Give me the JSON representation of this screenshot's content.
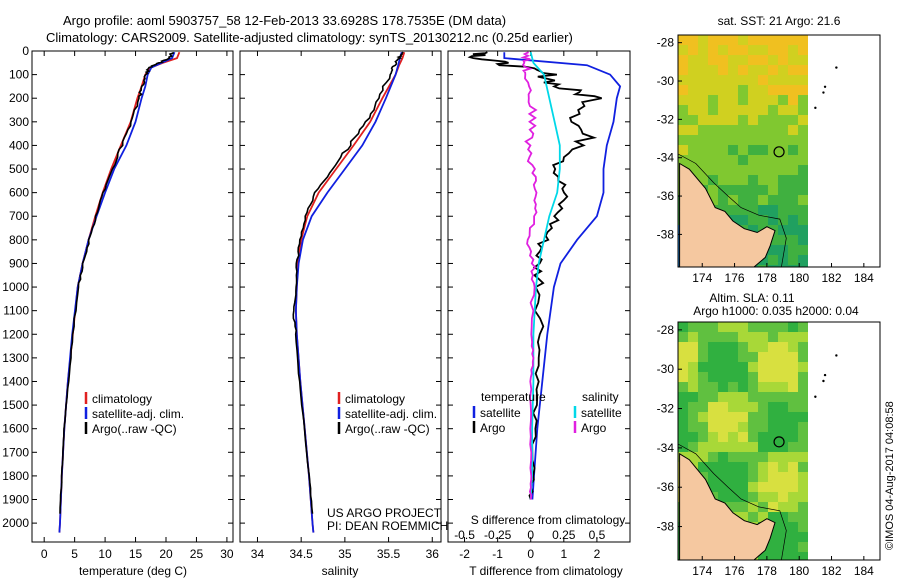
{
  "title": {
    "line1": "Argo profile: aoml 5903757_58 12-Feb-2013 33.6928S 178.7535E (DM data)",
    "line2": "Climatology: CARS2009. Satellite-adjusted climatology: synTS_20130212.nc (0.25d earlier)"
  },
  "colors": {
    "climatology": "#e02020",
    "satellite": "#1020e0",
    "argo": "#000000",
    "sat_salinity": "#00d8e8",
    "argo_salinity": "#e020e0",
    "land": "#f5c8a0"
  },
  "chart_data": [
    {
      "type": "line",
      "name": "temperature-profile",
      "xlabel": "temperature (deg C)",
      "ylabel": "depth",
      "xlim": [
        -2,
        31
      ],
      "ylim": [
        0,
        2080
      ],
      "xticks": [
        0,
        5,
        10,
        15,
        20,
        25,
        30
      ],
      "yticks": [
        0,
        100,
        200,
        300,
        400,
        500,
        600,
        700,
        800,
        900,
        1000,
        1100,
        1200,
        1300,
        1400,
        1500,
        1600,
        1700,
        1800,
        1900,
        2000
      ],
      "legend": [
        "climatology",
        "satellite-adj. clim.",
        "Argo(..raw -QC)"
      ],
      "series": [
        {
          "name": "climatology",
          "color_key": "climatology",
          "depth": [
            5,
            30,
            50,
            70,
            100,
            150,
            200,
            300,
            400,
            500,
            600,
            700,
            800,
            900,
            1000,
            1200,
            1400,
            1600,
            1800,
            2000,
            2040
          ],
          "values": [
            22.2,
            21.8,
            19.5,
            17.5,
            16.6,
            16.0,
            15.3,
            14.2,
            12.6,
            11.0,
            9.6,
            8.4,
            7.3,
            6.3,
            5.5,
            4.7,
            3.9,
            3.3,
            2.9,
            2.6,
            2.5
          ]
        },
        {
          "name": "satellite-adj. clim.",
          "color_key": "satellite",
          "depth": [
            5,
            30,
            50,
            70,
            100,
            150,
            200,
            300,
            400,
            500,
            600,
            700,
            800,
            900,
            1000,
            1200,
            1400,
            1600,
            1800,
            2000,
            2040
          ],
          "values": [
            21.4,
            21.0,
            19.3,
            17.6,
            17.0,
            16.6,
            16.0,
            15.0,
            13.5,
            11.5,
            10.0,
            8.6,
            7.3,
            6.3,
            5.5,
            4.6,
            3.9,
            3.3,
            2.9,
            2.6,
            2.5
          ]
        },
        {
          "name": "Argo",
          "color_key": "argo",
          "depth": [
            5,
            30,
            50,
            70,
            100,
            150,
            200,
            300,
            400,
            500,
            600,
            700,
            800,
            900,
            1000,
            1200,
            1400,
            1600,
            1800,
            1960
          ],
          "values": [
            21.0,
            20.6,
            18.9,
            17.3,
            16.7,
            16.2,
            15.5,
            14.3,
            12.8,
            11.1,
            9.7,
            8.5,
            7.4,
            6.4,
            5.6,
            4.7,
            4.0,
            3.3,
            2.9,
            2.6
          ]
        }
      ]
    },
    {
      "type": "line",
      "name": "salinity-profile",
      "xlabel": "salinity",
      "ylabel": "depth",
      "xlim": [
        33.8,
        36.1
      ],
      "ylim": [
        0,
        2080
      ],
      "xticks": [
        34,
        34.5,
        35,
        35.5,
        36
      ],
      "legend": [
        "climatology",
        "satellite-adj. clim.",
        "Argo(..raw -QC)"
      ],
      "series": [
        {
          "name": "climatology",
          "color_key": "climatology",
          "depth": [
            5,
            30,
            60,
            100,
            200,
            300,
            400,
            500,
            600,
            700,
            800,
            900,
            1000,
            1100,
            1200,
            1400,
            1600,
            1800,
            2000,
            2040
          ],
          "values": [
            35.68,
            35.66,
            35.62,
            35.58,
            35.43,
            35.29,
            35.1,
            34.9,
            34.7,
            34.57,
            34.5,
            34.46,
            34.45,
            34.44,
            34.45,
            34.49,
            34.54,
            34.59,
            34.63,
            34.64
          ]
        },
        {
          "name": "satellite-adj. clim.",
          "color_key": "satellite",
          "depth": [
            5,
            30,
            60,
            100,
            200,
            300,
            400,
            500,
            600,
            700,
            800,
            900,
            1000,
            1100,
            1200,
            1400,
            1600,
            1800,
            2000,
            2040
          ],
          "values": [
            35.65,
            35.63,
            35.61,
            35.58,
            35.47,
            35.35,
            35.2,
            35.0,
            34.8,
            34.62,
            34.52,
            34.47,
            34.45,
            34.44,
            34.45,
            34.49,
            34.54,
            34.59,
            34.63,
            34.64
          ]
        },
        {
          "name": "Argo",
          "color_key": "argo",
          "depth": [
            5,
            30,
            60,
            100,
            200,
            300,
            400,
            500,
            600,
            700,
            800,
            900,
            1000,
            1100,
            1200,
            1400,
            1600,
            1800,
            1960
          ],
          "values": [
            35.65,
            35.62,
            35.56,
            35.52,
            35.38,
            35.25,
            35.05,
            34.86,
            34.66,
            34.55,
            34.49,
            34.45,
            34.44,
            34.41,
            34.44,
            34.48,
            34.54,
            34.59,
            34.63
          ]
        }
      ],
      "annotations": [
        "US ARGO PROJECT",
        "PI: DEAN ROEMMICH"
      ]
    },
    {
      "type": "line",
      "name": "difference-profile",
      "xlabel": "T difference from climatology",
      "x2label": "S difference from climatology",
      "ylim": [
        0,
        2080
      ],
      "xlim": [
        -2.5,
        3.0
      ],
      "xticks": [
        -2,
        -1,
        0,
        1,
        2
      ],
      "x2lim": [
        -0.625,
        0.75
      ],
      "x2ticks": [
        -0.5,
        -0.25,
        0,
        0.25,
        0.5
      ],
      "x2ticklabels": [
        "-0.5",
        "-0.25",
        "0",
        "0.25",
        "0.5"
      ],
      "legend_temperature": [
        "temperature",
        "satellite",
        "Argo"
      ],
      "legend_salinity": [
        "salinity",
        "satellite",
        "Argo"
      ],
      "series": [
        {
          "name": "temperature satellite",
          "color_key": "satellite",
          "axis": "T",
          "depth": [
            5,
            30,
            60,
            100,
            150,
            200,
            300,
            400,
            500,
            600,
            700,
            800,
            900,
            1000,
            1200,
            1400,
            1600,
            1800,
            1900
          ],
          "values": [
            -0.8,
            -0.8,
            1.7,
            2.4,
            2.7,
            2.6,
            2.5,
            2.3,
            2.2,
            2.2,
            2.0,
            1.4,
            0.9,
            0.7,
            0.5,
            0.35,
            0.2,
            0.1,
            0.05
          ]
        },
        {
          "name": "temperature Argo",
          "color_key": "argo",
          "axis": "T",
          "depth": [
            5,
            30,
            60,
            100,
            150,
            200,
            300,
            400,
            500,
            600,
            700,
            800,
            900,
            1000,
            1200,
            1400,
            1600,
            1800,
            1900
          ],
          "values": [
            -1.3,
            -1.6,
            -0.6,
            0.5,
            0.8,
            2.0,
            1.4,
            1.7,
            0.8,
            1.0,
            0.8,
            0.4,
            0.2,
            0.3,
            0.3,
            0.2,
            0.1,
            0.05,
            0.0
          ]
        },
        {
          "name": "salinity satellite",
          "color_key": "sat_salinity",
          "axis": "S",
          "depth": [
            5,
            50,
            100,
            200,
            300,
            400,
            500,
            600,
            700,
            800,
            900,
            1000,
            1200,
            1400,
            1600,
            1800,
            1900
          ],
          "values": [
            0.0,
            0.02,
            0.1,
            0.14,
            0.18,
            0.22,
            0.22,
            0.2,
            0.14,
            0.1,
            0.06,
            0.04,
            0.02,
            0.02,
            0.01,
            0.01,
            0.0
          ]
        },
        {
          "name": "salinity Argo",
          "color_key": "argo_salinity",
          "axis": "S",
          "depth": [
            5,
            50,
            100,
            200,
            300,
            400,
            500,
            600,
            700,
            800,
            900,
            1000,
            1200,
            1300,
            1400,
            1600,
            1800,
            1900
          ],
          "values": [
            -0.02,
            -0.04,
            -0.02,
            0.0,
            0.02,
            -0.02,
            0.02,
            0.04,
            0.03,
            -0.02,
            0.02,
            0.02,
            0.0,
            0.02,
            0.0,
            0.0,
            0.0,
            0.0
          ]
        }
      ]
    },
    {
      "type": "heatmap",
      "name": "sst-map",
      "title": "sat. SST: 21 Argo: 21.6",
      "xlim": [
        172.5,
        185
      ],
      "ylim": [
        -39.7,
        -27.6
      ],
      "xticks": [
        174,
        176,
        178,
        180,
        182,
        184
      ],
      "yticks": [
        -28,
        -30,
        -32,
        -34,
        -36,
        -38
      ],
      "data_xmax": 180,
      "float_position": [
        178.7535,
        -33.6928
      ]
    },
    {
      "type": "heatmap",
      "name": "sla-map",
      "title_line1": "Altim. SLA: 0.11",
      "title_line2": "Argo h1000: 0.035 h2000: 0.04",
      "xlim": [
        172.5,
        185
      ],
      "ylim": [
        -39.7,
        -27.6
      ],
      "xticks": [
        174,
        176,
        178,
        180,
        182,
        184
      ],
      "yticks": [
        -28,
        -30,
        -32,
        -34,
        -36,
        -38
      ],
      "data_xmax": 180,
      "float_position": [
        178.7535,
        -33.6928
      ]
    }
  ],
  "stamp": "©IMOS 04-Aug-2017 04:08:58"
}
